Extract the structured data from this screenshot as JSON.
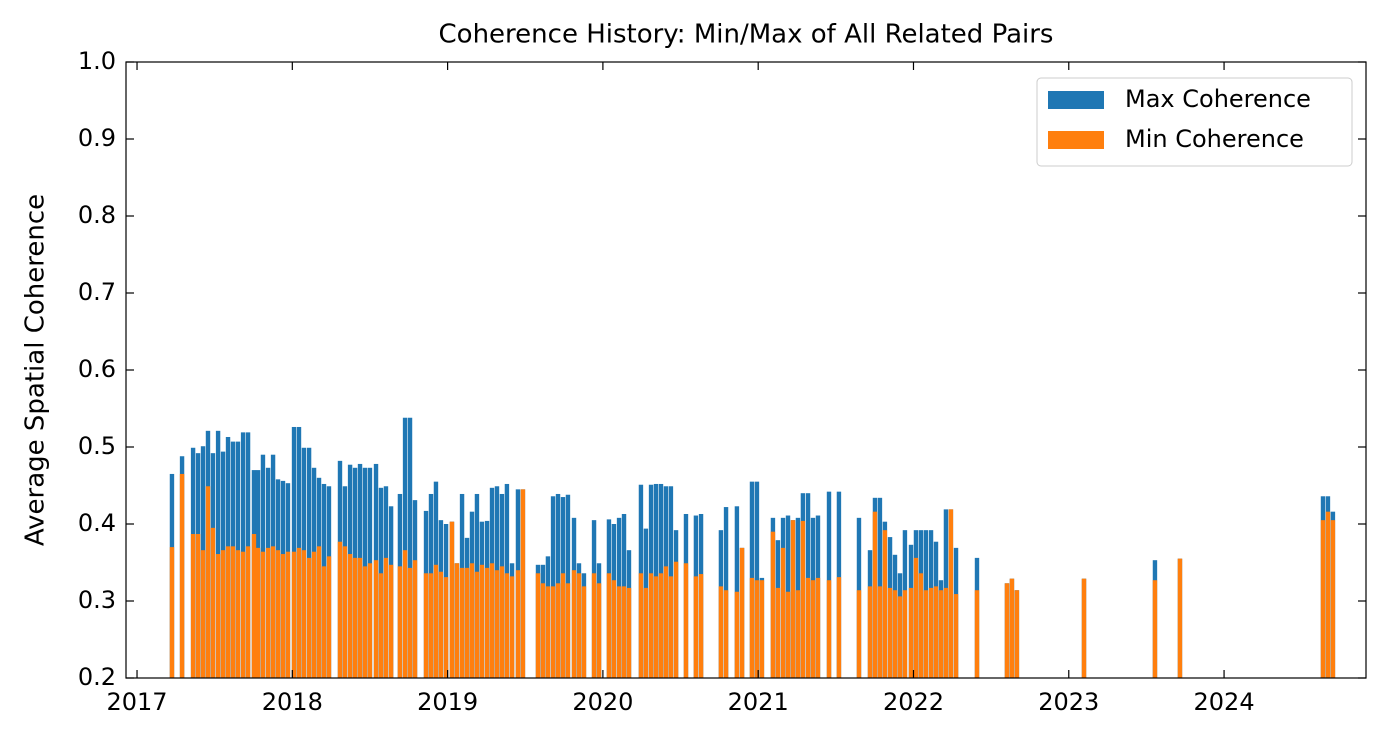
{
  "chart_data": {
    "type": "bar",
    "title": "Coherence History: Min/Max of All Related Pairs",
    "y_label": "Average Spatial Coherence",
    "x": [
      2017.225,
      2017.29,
      2017.361,
      2017.393,
      2017.425,
      2017.457,
      2017.489,
      2017.522,
      2017.554,
      2017.586,
      2017.618,
      2017.65,
      2017.683,
      2017.715,
      2017.753,
      2017.779,
      2017.811,
      2017.844,
      2017.876,
      2017.908,
      2017.94,
      2017.972,
      2018.011,
      2018.043,
      2018.075,
      2018.108,
      2018.14,
      2018.172,
      2018.204,
      2018.236,
      2018.307,
      2018.339,
      2018.372,
      2018.404,
      2018.436,
      2018.468,
      2018.5,
      2018.539,
      2018.571,
      2018.603,
      2018.636,
      2018.693,
      2018.726,
      2018.758,
      2018.79,
      2018.861,
      2018.893,
      2018.925,
      2018.957,
      2018.99,
      2019.028,
      2019.06,
      2019.093,
      2019.125,
      2019.157,
      2019.189,
      2019.221,
      2019.254,
      2019.286,
      2019.318,
      2019.35,
      2019.382,
      2019.415,
      2019.453,
      2019.485,
      2019.582,
      2019.614,
      2019.646,
      2019.679,
      2019.711,
      2019.743,
      2019.775,
      2019.814,
      2019.846,
      2019.878,
      2019.943,
      2019.975,
      2020.039,
      2020.071,
      2020.104,
      2020.136,
      2020.168,
      2020.245,
      2020.277,
      2020.31,
      2020.342,
      2020.374,
      2020.406,
      2020.438,
      2020.471,
      2020.535,
      2020.599,
      2020.632,
      2020.76,
      2020.793,
      2020.863,
      2020.896,
      2020.96,
      2020.992,
      2021.024,
      2021.095,
      2021.127,
      2021.16,
      2021.192,
      2021.224,
      2021.256,
      2021.288,
      2021.321,
      2021.353,
      2021.385,
      2021.456,
      2021.52,
      2021.649,
      2021.72,
      2021.752,
      2021.784,
      2021.816,
      2021.849,
      2021.881,
      2021.913,
      2021.945,
      2021.984,
      2022.016,
      2022.048,
      2022.08,
      2022.113,
      2022.145,
      2022.177,
      2022.209,
      2022.241,
      2022.274,
      2022.409,
      2022.602,
      2022.634,
      2022.666,
      2023.098,
      2023.555,
      2023.716,
      2024.637,
      2024.669,
      2024.701
    ],
    "series": [
      {
        "name": "Max Coherence",
        "color": "#1f77b4",
        "values": [
          0.465,
          0.488,
          0.499,
          0.492,
          0.501,
          0.521,
          0.492,
          0.521,
          0.494,
          0.513,
          0.507,
          0.507,
          0.519,
          0.519,
          0.47,
          0.47,
          0.49,
          0.473,
          0.49,
          0.458,
          0.456,
          0.453,
          0.526,
          0.526,
          0.499,
          0.499,
          0.473,
          0.46,
          0.452,
          0.449,
          0.482,
          0.449,
          0.477,
          0.473,
          0.478,
          0.473,
          0.473,
          0.478,
          0.447,
          0.449,
          0.423,
          0.439,
          0.538,
          0.538,
          0.431,
          0.417,
          0.439,
          0.455,
          0.405,
          0.4,
          0.403,
          0.349,
          0.439,
          0.382,
          0.416,
          0.439,
          0.403,
          0.404,
          0.447,
          0.449,
          0.439,
          0.452,
          0.349,
          0.445,
          0.445,
          0.347,
          0.347,
          0.358,
          0.436,
          0.439,
          0.435,
          0.438,
          0.408,
          0.349,
          0.336,
          0.405,
          0.349,
          0.406,
          0.4,
          0.408,
          0.413,
          0.366,
          0.451,
          0.394,
          0.451,
          0.452,
          0.452,
          0.449,
          0.449,
          0.392,
          0.413,
          0.411,
          0.413,
          0.392,
          0.422,
          0.423,
          0.369,
          0.455,
          0.455,
          0.33,
          0.408,
          0.379,
          0.408,
          0.411,
          0.405,
          0.408,
          0.44,
          0.44,
          0.408,
          0.411,
          0.442,
          0.442,
          0.408,
          0.366,
          0.434,
          0.434,
          0.403,
          0.383,
          0.36,
          0.336,
          0.392,
          0.373,
          0.392,
          0.392,
          0.392,
          0.392,
          0.377,
          0.327,
          0.419,
          0.419,
          0.369,
          0.356,
          0.323,
          0.329,
          0.314,
          0.329,
          0.353,
          0.355,
          0.436,
          0.436,
          0.416
        ]
      },
      {
        "name": "Min Coherence",
        "color": "#ff7f0e",
        "values": [
          0.37,
          0.465,
          0.387,
          0.387,
          0.366,
          0.449,
          0.395,
          0.361,
          0.366,
          0.371,
          0.371,
          0.366,
          0.364,
          0.371,
          0.387,
          0.369,
          0.364,
          0.369,
          0.371,
          0.366,
          0.361,
          0.364,
          0.364,
          0.369,
          0.366,
          0.356,
          0.364,
          0.371,
          0.345,
          0.358,
          0.377,
          0.371,
          0.361,
          0.356,
          0.356,
          0.345,
          0.349,
          0.353,
          0.336,
          0.356,
          0.347,
          0.345,
          0.366,
          0.343,
          0.353,
          0.336,
          0.336,
          0.347,
          0.338,
          0.331,
          0.403,
          0.349,
          0.343,
          0.343,
          0.349,
          0.338,
          0.347,
          0.343,
          0.349,
          0.34,
          0.345,
          0.336,
          0.332,
          0.34,
          0.445,
          0.336,
          0.323,
          0.319,
          0.319,
          0.323,
          0.336,
          0.323,
          0.34,
          0.336,
          0.319,
          0.336,
          0.323,
          0.336,
          0.327,
          0.319,
          0.319,
          0.317,
          0.336,
          0.317,
          0.336,
          0.332,
          0.336,
          0.345,
          0.332,
          0.351,
          0.349,
          0.332,
          0.335,
          0.319,
          0.314,
          0.312,
          0.369,
          0.33,
          0.327,
          0.327,
          0.39,
          0.317,
          0.369,
          0.312,
          0.405,
          0.314,
          0.404,
          0.33,
          0.327,
          0.33,
          0.327,
          0.331,
          0.314,
          0.319,
          0.416,
          0.319,
          0.392,
          0.317,
          0.314,
          0.306,
          0.314,
          0.317,
          0.356,
          0.336,
          0.314,
          0.317,
          0.319,
          0.314,
          0.317,
          0.419,
          0.309,
          0.314,
          0.323,
          0.329,
          0.314,
          0.329,
          0.327,
          0.355,
          0.405,
          0.416,
          0.405
        ]
      }
    ],
    "xlim": [
      2016.929,
      2024.914
    ],
    "xticks": [
      2017,
      2018,
      2019,
      2020,
      2021,
      2022,
      2023,
      2024
    ],
    "ylim": [
      0.2,
      1.0
    ],
    "yticks": [
      0.2,
      0.3,
      0.4,
      0.5,
      0.6,
      0.7,
      0.8,
      0.9,
      {
        "value": 1.0,
        "label": "1.0"
      }
    ],
    "legend": "upper right"
  }
}
